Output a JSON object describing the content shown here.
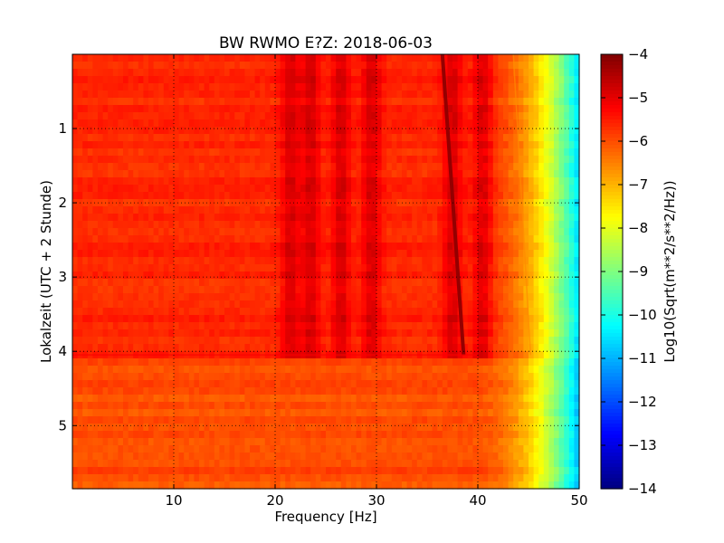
{
  "chart_data": {
    "type": "heatmap",
    "title": "BW RWMO E?Z: 2018-06-03",
    "xlabel": "Frequency [Hz]",
    "ylabel": "Lokalzeit (UTC + 2 Stunde)",
    "xlim": [
      0,
      50
    ],
    "ylim": [
      5.85,
      0
    ],
    "x_ticks": [
      10,
      20,
      30,
      40,
      50
    ],
    "y_ticks": [
      1,
      2,
      3,
      4,
      5
    ],
    "grid": true,
    "colormap": "jet",
    "colorbar": {
      "label": "Log10(Sqrt(m**2/s**2/Hz))",
      "range": [
        -14,
        -4
      ],
      "ticks": [
        -4,
        -5,
        -6,
        -7,
        -8,
        -9,
        -10,
        -11,
        -12,
        -13,
        -14
      ]
    },
    "features": {
      "background_level": -6.0,
      "rolloff_start_hz": 39,
      "upper_edge_level_hz_50": -11.0,
      "resonance_bands_hz": [
        21.5,
        23.5,
        26.5,
        29.5,
        37.5,
        40.5
      ],
      "regime_change_time": 4.05,
      "drifting_line": {
        "start": {
          "time": 0,
          "freq_hz": 36.5
        },
        "end": {
          "time": 4.05,
          "freq_hz": 38.6
        },
        "level": -4.2
      },
      "faint_line": {
        "start": {
          "time": 0,
          "freq_hz": 43.5
        },
        "end": {
          "time": 4.05,
          "freq_hz": 45.2
        }
      }
    }
  }
}
